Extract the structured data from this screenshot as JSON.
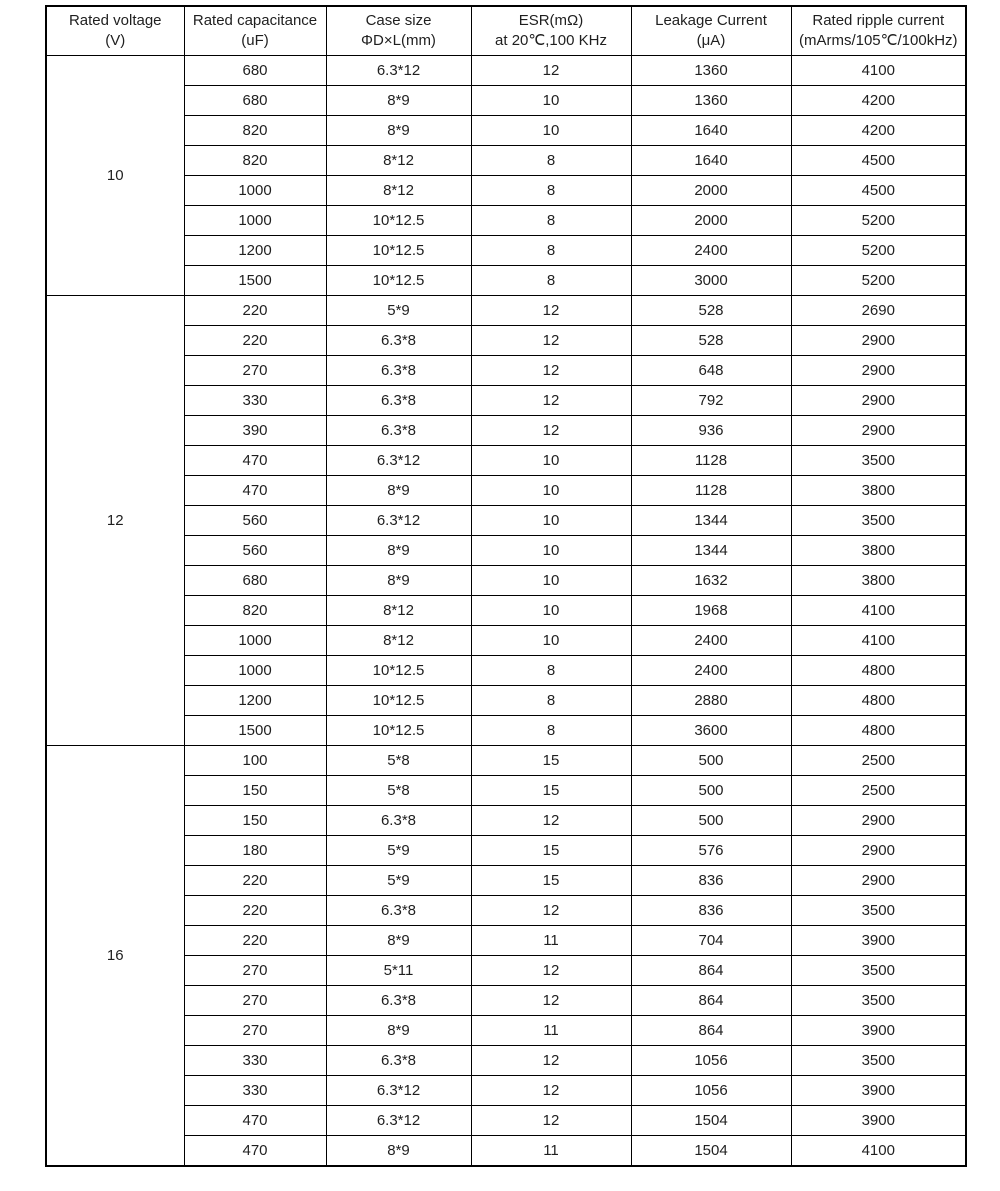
{
  "table": {
    "columns": [
      {
        "line1": "Rated voltage",
        "line2": "(V)"
      },
      {
        "line1": "Rated capacitance",
        "line2": "(uF)"
      },
      {
        "line1": "Case  size",
        "line2": "ΦD×L(mm)"
      },
      {
        "line1": "ESR(mΩ)",
        "line2": "at 20℃,100 KHz"
      },
      {
        "line1": "Leakage Current",
        "line2": "(μA)"
      },
      {
        "line1": "Rated ripple current",
        "line2": "(mArms/105℃/100kHz)"
      }
    ],
    "groups": [
      {
        "voltage": "10",
        "rows": [
          [
            "680",
            "6.3*12",
            "12",
            "1360",
            "4100"
          ],
          [
            "680",
            "8*9",
            "10",
            "1360",
            "4200"
          ],
          [
            "820",
            "8*9",
            "10",
            "1640",
            "4200"
          ],
          [
            "820",
            "8*12",
            "8",
            "1640",
            "4500"
          ],
          [
            "1000",
            "8*12",
            "8",
            "2000",
            "4500"
          ],
          [
            "1000",
            "10*12.5",
            "8",
            "2000",
            "5200"
          ],
          [
            "1200",
            "10*12.5",
            "8",
            "2400",
            "5200"
          ],
          [
            "1500",
            "10*12.5",
            "8",
            "3000",
            "5200"
          ]
        ]
      },
      {
        "voltage": "12",
        "rows": [
          [
            "220",
            "5*9",
            "12",
            "528",
            "2690"
          ],
          [
            "220",
            "6.3*8",
            "12",
            "528",
            "2900"
          ],
          [
            "270",
            "6.3*8",
            "12",
            "648",
            "2900"
          ],
          [
            "330",
            "6.3*8",
            "12",
            "792",
            "2900"
          ],
          [
            "390",
            "6.3*8",
            "12",
            "936",
            "2900"
          ],
          [
            "470",
            "6.3*12",
            "10",
            "1128",
            "3500"
          ],
          [
            "470",
            "8*9",
            "10",
            "1128",
            "3800"
          ],
          [
            "560",
            "6.3*12",
            "10",
            "1344",
            "3500"
          ],
          [
            "560",
            "8*9",
            "10",
            "1344",
            "3800"
          ],
          [
            "680",
            "8*9",
            "10",
            "1632",
            "3800"
          ],
          [
            "820",
            "8*12",
            "10",
            "1968",
            "4100"
          ],
          [
            "1000",
            "8*12",
            "10",
            "2400",
            "4100"
          ],
          [
            "1000",
            "10*12.5",
            "8",
            "2400",
            "4800"
          ],
          [
            "1200",
            "10*12.5",
            "8",
            "2880",
            "4800"
          ],
          [
            "1500",
            "10*12.5",
            "8",
            "3600",
            "4800"
          ]
        ]
      },
      {
        "voltage": "16",
        "rows": [
          [
            "100",
            "5*8",
            "15",
            "500",
            "2500"
          ],
          [
            "150",
            "5*8",
            "15",
            "500",
            "2500"
          ],
          [
            "150",
            "6.3*8",
            "12",
            "500",
            "2900"
          ],
          [
            "180",
            "5*9",
            "15",
            "576",
            "2900"
          ],
          [
            "220",
            "5*9",
            "15",
            "836",
            "2900"
          ],
          [
            "220",
            "6.3*8",
            "12",
            "836",
            "3500"
          ],
          [
            "220",
            "8*9",
            "11",
            "704",
            "3900"
          ],
          [
            "270",
            "5*11",
            "12",
            "864",
            "3500"
          ],
          [
            "270",
            "6.3*8",
            "12",
            "864",
            "3500"
          ],
          [
            "270",
            "8*9",
            "11",
            "864",
            "3900"
          ],
          [
            "330",
            "6.3*8",
            "12",
            "1056",
            "3500"
          ],
          [
            "330",
            "6.3*12",
            "12",
            "1056",
            "3900"
          ],
          [
            "470",
            "6.3*12",
            "12",
            "1504",
            "3900"
          ],
          [
            "470",
            "8*9",
            "11",
            "1504",
            "4100"
          ]
        ]
      }
    ]
  },
  "colors": {
    "border": "#000000",
    "text": "#1f1f1f",
    "background": "#ffffff"
  }
}
